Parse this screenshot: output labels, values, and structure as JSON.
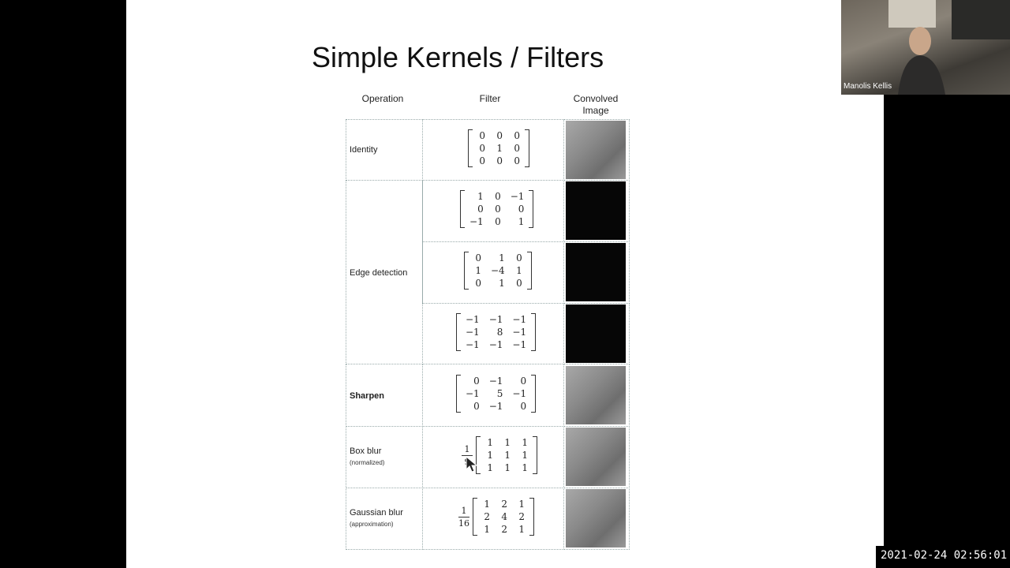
{
  "slide": {
    "title": "Simple Kernels / Filters",
    "headers": {
      "operation": "Operation",
      "filter": "Filter",
      "convolved_line1": "Convolved",
      "convolved_line2": "Image"
    },
    "rows": [
      {
        "label": "Identity",
        "sub": "",
        "filters": [
          {
            "prefix": "",
            "matrix": [
              [
                "0",
                "0",
                "0"
              ],
              [
                "0",
                "1",
                "0"
              ],
              [
                "0",
                "0",
                "0"
              ]
            ]
          }
        ],
        "images": [
          "gray"
        ]
      },
      {
        "label": "Edge detection",
        "sub": "",
        "filters": [
          {
            "prefix": "",
            "matrix": [
              [
                "1",
                "0",
                "−1"
              ],
              [
                "0",
                "0",
                "0"
              ],
              [
                "−1",
                "0",
                "1"
              ]
            ]
          },
          {
            "prefix": "",
            "matrix": [
              [
                "0",
                "1",
                "0"
              ],
              [
                "1",
                "−4",
                "1"
              ],
              [
                "0",
                "1",
                "0"
              ]
            ]
          },
          {
            "prefix": "",
            "matrix": [
              [
                "−1",
                "−1",
                "−1"
              ],
              [
                "−1",
                "8",
                "−1"
              ],
              [
                "−1",
                "−1",
                "−1"
              ]
            ]
          }
        ],
        "images": [
          "dark",
          "dark",
          "dark"
        ]
      },
      {
        "label": "Sharpen",
        "sub": "",
        "filters": [
          {
            "prefix": "",
            "matrix": [
              [
                "0",
                "−1",
                "0"
              ],
              [
                "−1",
                "5",
                "−1"
              ],
              [
                "0",
                "−1",
                "0"
              ]
            ]
          }
        ],
        "images": [
          "gray"
        ]
      },
      {
        "label": "Box blur",
        "sub": "(normalized)",
        "filters": [
          {
            "prefix_num": "1",
            "prefix_den": "9",
            "matrix": [
              [
                "1",
                "1",
                "1"
              ],
              [
                "1",
                "1",
                "1"
              ],
              [
                "1",
                "1",
                "1"
              ]
            ]
          }
        ],
        "images": [
          "gray"
        ]
      },
      {
        "label": "Gaussian blur",
        "sub": "(approximation)",
        "filters": [
          {
            "prefix_num": "1",
            "prefix_den": "16",
            "matrix": [
              [
                "1",
                "2",
                "1"
              ],
              [
                "2",
                "4",
                "2"
              ],
              [
                "1",
                "2",
                "1"
              ]
            ]
          }
        ],
        "images": [
          "gray"
        ]
      }
    ]
  },
  "video": {
    "participant_name": "Manolis Kellis",
    "timestamp": "2021-02-24  02:56:01"
  }
}
